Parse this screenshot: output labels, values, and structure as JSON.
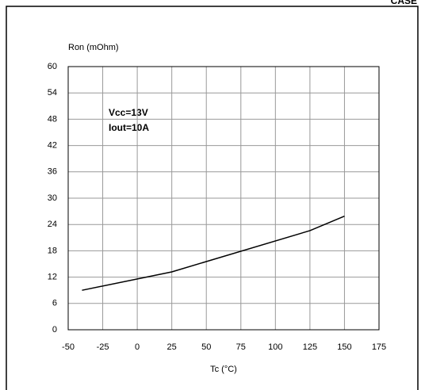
{
  "header": "CASE",
  "chart_data": {
    "type": "line",
    "y_label": "Ron (mOhm)",
    "x_label": "Tc (°C)",
    "annotations": [
      "Vcc=13V",
      "Iout=10A"
    ],
    "x": [
      -40,
      25,
      125,
      150
    ],
    "series": [
      {
        "color": "#000000",
        "values": [
          9,
          13.2,
          22.6,
          25.9
        ]
      }
    ],
    "xlim": [
      -50,
      175
    ],
    "xticks": [
      -50,
      -25,
      0,
      25,
      50,
      75,
      100,
      125,
      150,
      175
    ],
    "ylim": [
      0,
      60
    ],
    "yticks": [
      0,
      6,
      12,
      18,
      24,
      30,
      36,
      42,
      48,
      54,
      60
    ],
    "grid": true
  }
}
